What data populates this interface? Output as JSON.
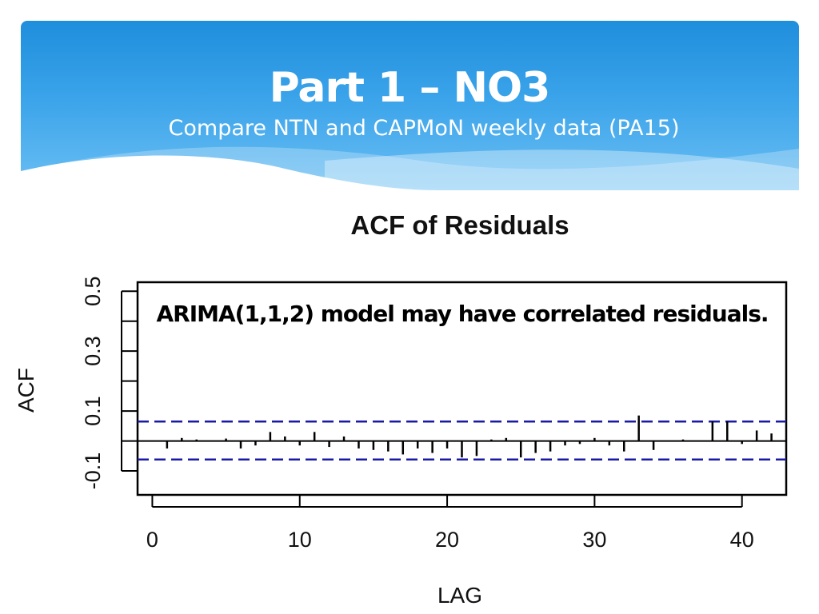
{
  "slide": {
    "title": "Part 1 – NO3",
    "subtitle": "Compare NTN and CAPMoN weekly data (PA15)",
    "colors": {
      "banner_top": "#1f8edc",
      "banner_bottom": "#6bbff3",
      "text": "#ffffff"
    }
  },
  "chart_data": {
    "type": "bar",
    "title": "ACF of Residuals",
    "xlabel": "LAG",
    "ylabel": "ACF",
    "annotation": "ARIMA(1,1,2) model may have correlated residuals.",
    "xlim": [
      -1,
      43
    ],
    "ylim": [
      -0.18,
      0.53
    ],
    "x_ticks": [
      0,
      10,
      20,
      30,
      40
    ],
    "y_ticks": [
      -0.1,
      0.0,
      0.1,
      0.2,
      0.3,
      0.4,
      0.5
    ],
    "y_tick_labels": [
      {
        "value": -0.1,
        "label": "-0.1"
      },
      {
        "value": 0.1,
        "label": "0.1"
      },
      {
        "value": 0.3,
        "label": "0.3"
      },
      {
        "value": 0.5,
        "label": "0.5"
      }
    ],
    "confidence_bounds": [
      0.065,
      -0.062
    ],
    "colors": {
      "bound_line": "#1a1aa6",
      "bars": "#000000"
    },
    "lags": [
      1,
      2,
      3,
      4,
      5,
      6,
      7,
      8,
      9,
      10,
      11,
      12,
      13,
      14,
      15,
      16,
      17,
      18,
      19,
      20,
      21,
      22,
      23,
      24,
      25,
      26,
      27,
      28,
      29,
      30,
      31,
      32,
      33,
      34,
      35,
      36,
      37,
      38,
      39,
      40,
      41,
      42
    ],
    "acf": [
      -0.025,
      0.01,
      0.005,
      0.0,
      0.008,
      -0.025,
      -0.015,
      0.03,
      0.015,
      -0.015,
      0.03,
      -0.02,
      0.015,
      -0.025,
      -0.03,
      -0.035,
      -0.045,
      -0.025,
      -0.04,
      -0.025,
      -0.055,
      -0.05,
      0.005,
      0.01,
      -0.055,
      -0.04,
      -0.035,
      -0.015,
      -0.01,
      0.01,
      -0.015,
      -0.035,
      0.085,
      -0.03,
      0.0,
      0.005,
      0.0,
      0.065,
      0.065,
      -0.01,
      0.035,
      0.025
    ]
  }
}
